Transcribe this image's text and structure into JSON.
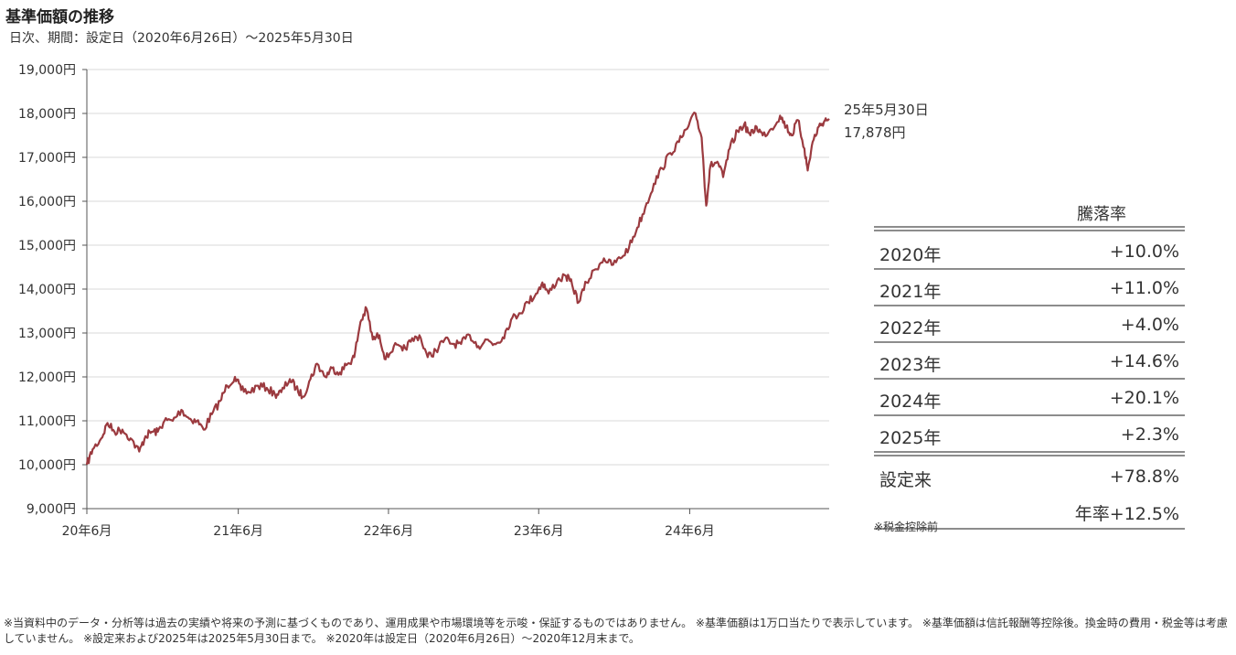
{
  "chart_data": {
    "type": "line",
    "title": "基準価額の推移",
    "subtitle": "日次、期間：設定日（2020年6月26日）〜2025年5月30日",
    "xlabel": "",
    "ylabel": "",
    "ylim": [
      9000,
      19000
    ],
    "y_ticks": [
      "9,000円",
      "10,000円",
      "11,000円",
      "12,000円",
      "13,000円",
      "14,000円",
      "15,000円",
      "16,000円",
      "17,000円",
      "18,000円",
      "19,000円"
    ],
    "x_ticks": [
      "20年6月",
      "21年6月",
      "22年6月",
      "23年6月",
      "24年6月"
    ],
    "grid": true,
    "line_color": "#9b3a3f",
    "series": [
      {
        "values_note": "",
        "points": [
          [
            "2020-06-26",
            10000
          ],
          [
            "2020-07-10",
            10350
          ],
          [
            "2020-07-31",
            10600
          ],
          [
            "2020-08-15",
            10950
          ],
          [
            "2020-09-01",
            10750
          ],
          [
            "2020-09-20",
            10800
          ],
          [
            "2020-10-10",
            10600
          ],
          [
            "2020-10-31",
            10300
          ],
          [
            "2020-11-15",
            10650
          ],
          [
            "2020-11-30",
            10750
          ],
          [
            "2020-12-15",
            10750
          ],
          [
            "2020-12-31",
            11000
          ],
          [
            "2021-01-20",
            11000
          ],
          [
            "2021-02-10",
            11250
          ],
          [
            "2021-03-01",
            11050
          ],
          [
            "2021-03-20",
            11000
          ],
          [
            "2021-04-05",
            10800
          ],
          [
            "2021-04-25",
            11150
          ],
          [
            "2021-05-15",
            11450
          ],
          [
            "2021-06-01",
            11800
          ],
          [
            "2021-06-20",
            12000
          ],
          [
            "2021-07-05",
            11700
          ],
          [
            "2021-07-25",
            11650
          ],
          [
            "2021-08-15",
            11800
          ],
          [
            "2021-09-05",
            11750
          ],
          [
            "2021-09-25",
            11600
          ],
          [
            "2021-10-10",
            11650
          ],
          [
            "2021-10-31",
            11950
          ],
          [
            "2021-11-15",
            11750
          ],
          [
            "2021-12-01",
            11550
          ],
          [
            "2021-12-20",
            11950
          ],
          [
            "2022-01-05",
            12300
          ],
          [
            "2022-01-25",
            12000
          ],
          [
            "2022-02-10",
            12200
          ],
          [
            "2022-03-01",
            12100
          ],
          [
            "2022-03-20",
            12300
          ],
          [
            "2022-04-05",
            12450
          ],
          [
            "2022-04-20",
            13250
          ],
          [
            "2022-05-05",
            13550
          ],
          [
            "2022-05-20",
            12850
          ],
          [
            "2022-06-05",
            12950
          ],
          [
            "2022-06-20",
            12400
          ],
          [
            "2022-07-10",
            12700
          ],
          [
            "2022-07-31",
            12600
          ],
          [
            "2022-08-20",
            12800
          ],
          [
            "2022-09-10",
            12950
          ],
          [
            "2022-09-30",
            12450
          ],
          [
            "2022-10-20",
            12600
          ],
          [
            "2022-11-10",
            12850
          ],
          [
            "2022-11-30",
            12750
          ],
          [
            "2022-12-20",
            12750
          ],
          [
            "2023-01-10",
            12950
          ],
          [
            "2023-01-31",
            12700
          ],
          [
            "2023-02-20",
            12850
          ],
          [
            "2023-03-10",
            12750
          ],
          [
            "2023-03-31",
            12900
          ],
          [
            "2023-04-20",
            13300
          ],
          [
            "2023-05-10",
            13450
          ],
          [
            "2023-05-31",
            13700
          ],
          [
            "2023-06-20",
            13900
          ],
          [
            "2023-07-05",
            14150
          ],
          [
            "2023-07-20",
            13900
          ],
          [
            "2023-08-10",
            14200
          ],
          [
            "2023-08-31",
            14300
          ],
          [
            "2023-09-15",
            14100
          ],
          [
            "2023-10-01",
            13700
          ],
          [
            "2023-10-20",
            14150
          ],
          [
            "2023-11-10",
            14450
          ],
          [
            "2023-12-01",
            14700
          ],
          [
            "2023-12-20",
            14550
          ],
          [
            "2024-01-10",
            14700
          ],
          [
            "2024-01-31",
            14950
          ],
          [
            "2024-02-20",
            15400
          ],
          [
            "2024-03-10",
            15850
          ],
          [
            "2024-03-31",
            16400
          ],
          [
            "2024-04-20",
            16750
          ],
          [
            "2024-05-10",
            17100
          ],
          [
            "2024-05-31",
            17350
          ],
          [
            "2024-06-20",
            17650
          ],
          [
            "2024-07-10",
            18000
          ],
          [
            "2024-07-25",
            17450
          ],
          [
            "2024-08-05",
            15900
          ],
          [
            "2024-08-15",
            16800
          ],
          [
            "2024-09-01",
            16900
          ],
          [
            "2024-09-15",
            16550
          ],
          [
            "2024-10-01",
            17200
          ],
          [
            "2024-10-20",
            17600
          ],
          [
            "2024-11-05",
            17750
          ],
          [
            "2024-11-20",
            17500
          ],
          [
            "2024-12-05",
            17700
          ],
          [
            "2024-12-20",
            17500
          ],
          [
            "2025-01-10",
            17650
          ],
          [
            "2025-01-31",
            17950
          ],
          [
            "2025-02-15",
            17700
          ],
          [
            "2025-02-28",
            17500
          ],
          [
            "2025-03-15",
            17850
          ],
          [
            "2025-03-31",
            17200
          ],
          [
            "2025-04-08",
            16700
          ],
          [
            "2025-04-20",
            17350
          ],
          [
            "2025-05-05",
            17700
          ],
          [
            "2025-05-20",
            17850
          ],
          [
            "2025-05-30",
            17878
          ]
        ]
      }
    ],
    "end_annotation": {
      "date": "25年5月30日",
      "value": "17,878円"
    }
  },
  "returns_table": {
    "header": "騰落率",
    "rows": [
      {
        "label": "2020年",
        "value": "+10.0%"
      },
      {
        "label": "2021年",
        "value": "+11.0%"
      },
      {
        "label": "2022年",
        "value": "+4.0%"
      },
      {
        "label": "2023年",
        "value": "+14.6%"
      },
      {
        "label": "2024年",
        "value": "+20.1%"
      },
      {
        "label": "2025年",
        "value": "+2.3%"
      },
      {
        "label": "設定来",
        "value": "+78.8%"
      }
    ],
    "annualized": "年率+12.5%",
    "note": "※税金控除前"
  },
  "footnote": "※当資料中のデータ・分析等は過去の実績や将来の予測に基づくものであり、運用成果や市場環境等を示唆・保証するものではありません。 ※基準価額は1万口当たりで表示しています。 ※基準価額は信託報酬等控除後。換金時の費用・税金等は考慮していません。 ※設定来および2025年は2025年5月30日まで。 ※2020年は設定日（2020年6月26日）〜2020年12月末まで。"
}
